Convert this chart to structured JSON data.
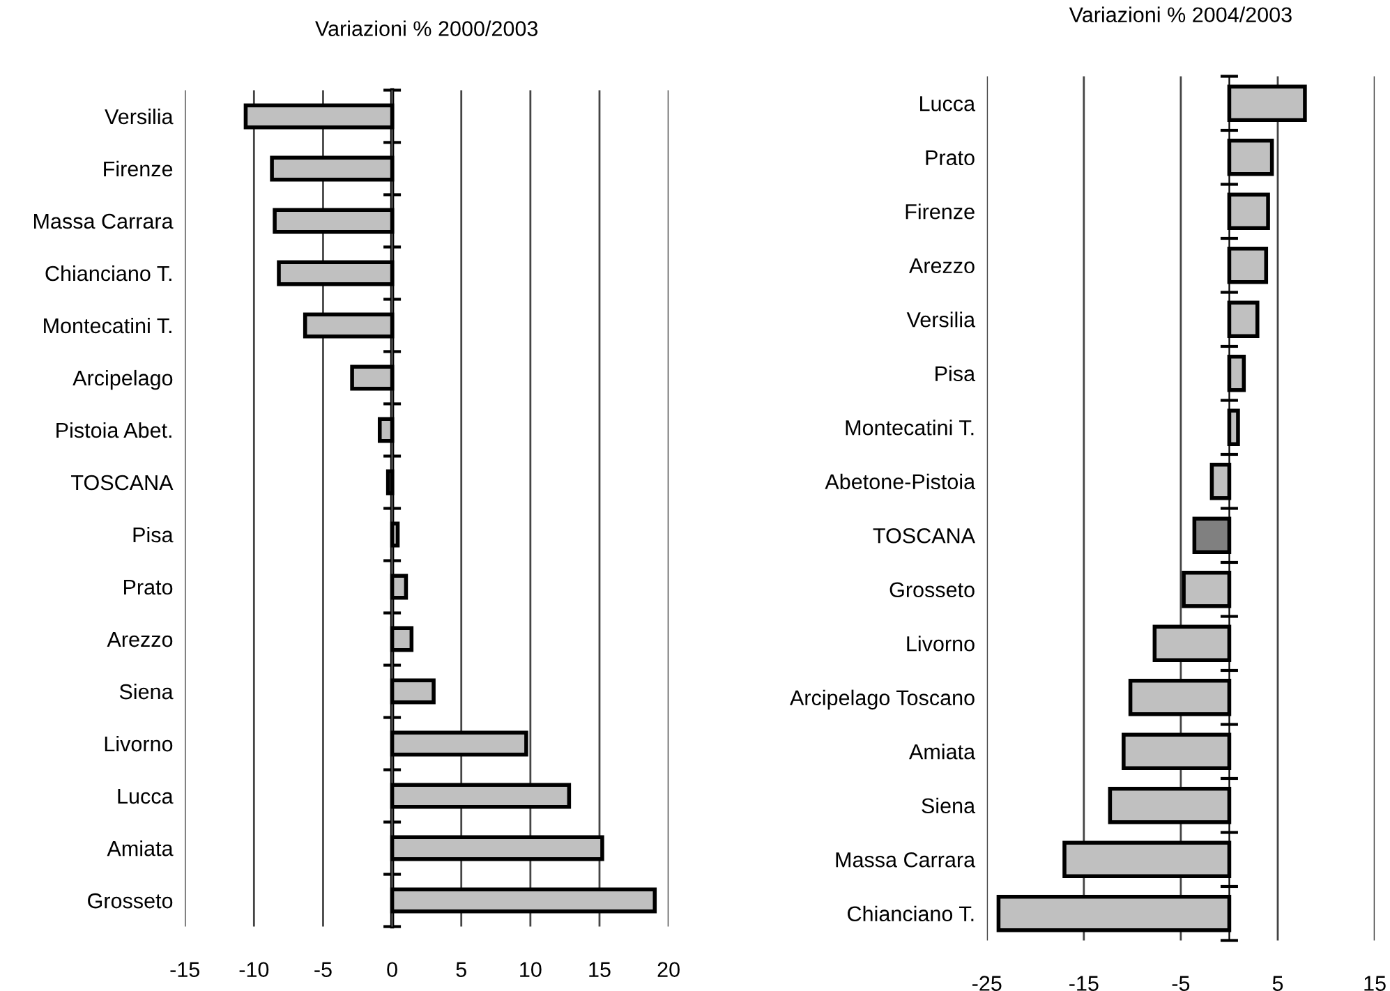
{
  "chart_data": [
    {
      "type": "bar",
      "orientation": "horizontal",
      "title": "Variazioni % 2000/2003",
      "categories": [
        "Versilia",
        "Firenze",
        "Massa Carrara",
        "Chianciano T.",
        "Montecatini T.",
        "Arcipelago",
        "Pistoia Abet.",
        "TOSCANA",
        "Pisa",
        "Prato",
        "Arezzo",
        "Siena",
        "Livorno",
        "Lucca",
        "Amiata",
        "Grosseto"
      ],
      "values": [
        -10.6,
        -8.7,
        -8.5,
        -8.2,
        -6.3,
        -2.9,
        -0.9,
        -0.3,
        0.4,
        1.0,
        1.4,
        3.0,
        9.7,
        12.8,
        15.2,
        19.0
      ],
      "colors": [
        "#c0c0c0",
        "#c0c0c0",
        "#c0c0c0",
        "#c0c0c0",
        "#c0c0c0",
        "#c0c0c0",
        "#c0c0c0",
        "#808080",
        "#c0c0c0",
        "#c0c0c0",
        "#c0c0c0",
        "#c0c0c0",
        "#c0c0c0",
        "#c0c0c0",
        "#c0c0c0",
        "#c0c0c0"
      ],
      "xlim": [
        -15,
        20
      ],
      "xticks": [
        -15,
        -10,
        -5,
        0,
        5,
        10,
        15,
        20
      ],
      "grid": "x"
    },
    {
      "type": "bar",
      "orientation": "horizontal",
      "title": "Variazioni % 2004/2003",
      "categories": [
        "Lucca",
        "Prato",
        "Firenze",
        "Arezzo",
        "Versilia",
        "Pisa",
        "Montecatini T.",
        "Abetone-Pistoia",
        "TOSCANA",
        "Grosseto",
        "Livorno",
        "Arcipelago Toscano",
        "Amiata",
        "Siena",
        "Massa Carrara",
        "Chianciano T."
      ],
      "values": [
        7.8,
        4.4,
        4.0,
        3.8,
        2.9,
        1.5,
        0.9,
        -1.8,
        -3.6,
        -4.7,
        -7.7,
        -10.2,
        -10.9,
        -12.3,
        -17.0,
        -23.8
      ],
      "colors": [
        "#c0c0c0",
        "#c0c0c0",
        "#c0c0c0",
        "#c0c0c0",
        "#c0c0c0",
        "#c0c0c0",
        "#c0c0c0",
        "#c0c0c0",
        "#808080",
        "#c0c0c0",
        "#c0c0c0",
        "#c0c0c0",
        "#c0c0c0",
        "#c0c0c0",
        "#c0c0c0",
        "#c0c0c0"
      ],
      "xlim": [
        -25,
        15
      ],
      "xticks": [
        -25,
        -15,
        -5,
        5,
        15
      ],
      "grid": "x"
    }
  ]
}
